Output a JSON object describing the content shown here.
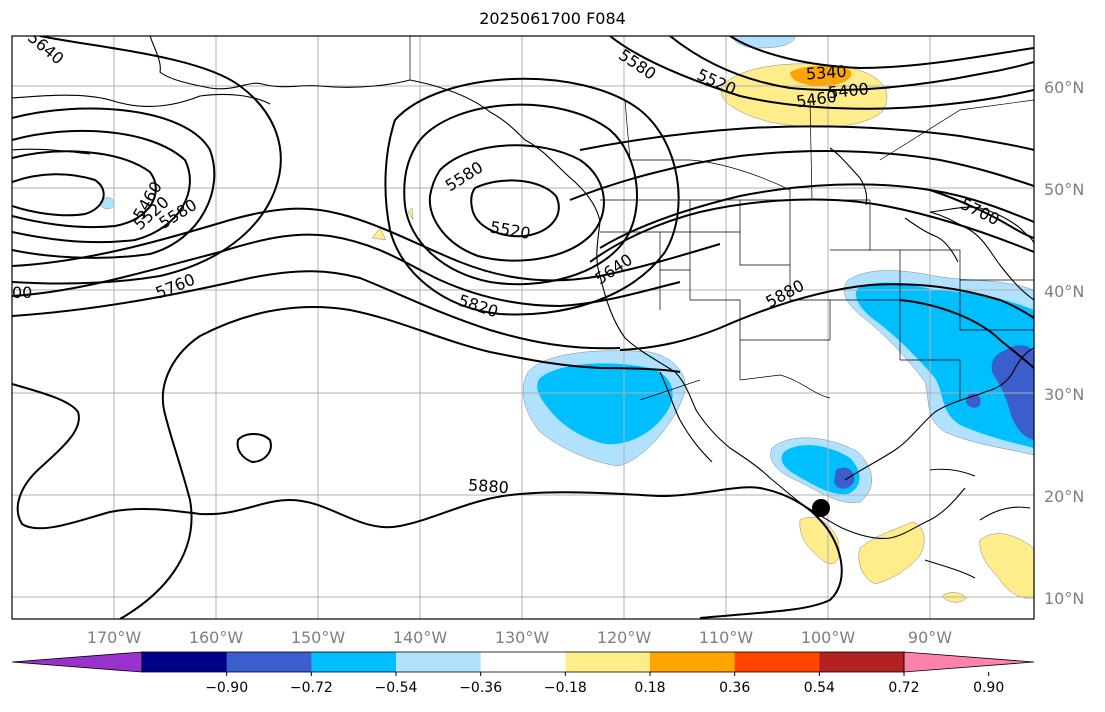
{
  "title": "2025061700 F084",
  "longitude_labels": [
    "170°W",
    "160°W",
    "150°W",
    "140°W",
    "130°W",
    "120°W",
    "110°W",
    "100°W",
    "90°W"
  ],
  "latitude_labels": [
    "60°N",
    "50°N",
    "40°N",
    "30°N",
    "20°N",
    "10°N"
  ],
  "contour_labels": [
    "5640",
    "5460",
    "5520",
    "5580",
    "5760",
    "00",
    "5580",
    "5520",
    "5640",
    "5820",
    "5880",
    "5880",
    "5580",
    "5520",
    "5460",
    "5400",
    "5340",
    "5700"
  ],
  "colorbar": {
    "tick_labels": [
      "−0.90",
      "−0.72",
      "−0.54",
      "−0.36",
      "−0.18",
      "0.18",
      "0.36",
      "0.54",
      "0.72",
      "0.90"
    ],
    "colors": [
      "#9932cc",
      "#00008b",
      "#3a5fcd",
      "#00bfff",
      "#b0e2ff",
      "#ffffff",
      "#ffec8b",
      "#ffa500",
      "#ff4500",
      "#b22222",
      "#ff82ab"
    ]
  },
  "map_colors": {
    "light_blue": "#b0e2ff",
    "blue": "#00bfff",
    "dark_blue": "#3a5fcd",
    "yellow": "#ffec8b",
    "orange": "#ffa500",
    "grid": "#b0b0b0"
  },
  "marker": "black-dot"
}
